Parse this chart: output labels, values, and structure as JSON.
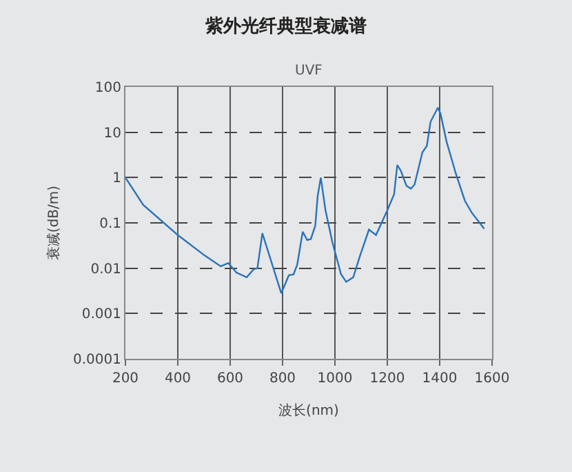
{
  "chart_data": {
    "type": "line",
    "title": "紫外光纤典型衰减谱",
    "subtitle": "UVF",
    "xlabel": "波长(nm)",
    "ylabel": "衰减(dB/m)",
    "log": "y",
    "grid": true,
    "marker": "none",
    "line_style": "solid",
    "xlim": [
      200,
      1600
    ],
    "xticks": [
      200,
      400,
      600,
      800,
      1000,
      1200,
      1400,
      1600
    ],
    "ylim": [
      0.0001,
      100
    ],
    "yticks": [
      0.0001,
      0.001,
      0.01,
      0.1,
      1,
      10,
      100
    ],
    "series": [
      {
        "color": "#2a73b8",
        "x": [
          200,
          268,
          398,
          503,
          564,
          593,
          624,
          663,
          690,
          704,
          723,
          795,
          824,
          842,
          856,
          877,
          894,
          908,
          925,
          934,
          946,
          964,
          990,
          1023,
          1043,
          1070,
          1096,
          1130,
          1157,
          1200,
          1226,
          1238,
          1252,
          1273,
          1290,
          1304,
          1334,
          1351,
          1365,
          1393,
          1403,
          1426,
          1461,
          1496,
          1522,
          1570
        ],
        "values": [
          1,
          0.25,
          0.055,
          0.019,
          0.011,
          0.013,
          0.008,
          0.0063,
          0.0095,
          0.01,
          0.059,
          0.0028,
          0.007,
          0.0073,
          0.012,
          0.064,
          0.042,
          0.044,
          0.087,
          0.39,
          1,
          0.19,
          0.038,
          0.0074,
          0.005,
          0.0063,
          0.019,
          0.071,
          0.054,
          0.19,
          0.43,
          1.9,
          1.4,
          0.66,
          0.57,
          0.7,
          3.6,
          5,
          17,
          35,
          26,
          6.3,
          1.26,
          0.31,
          0.17,
          0.074
        ]
      }
    ]
  }
}
